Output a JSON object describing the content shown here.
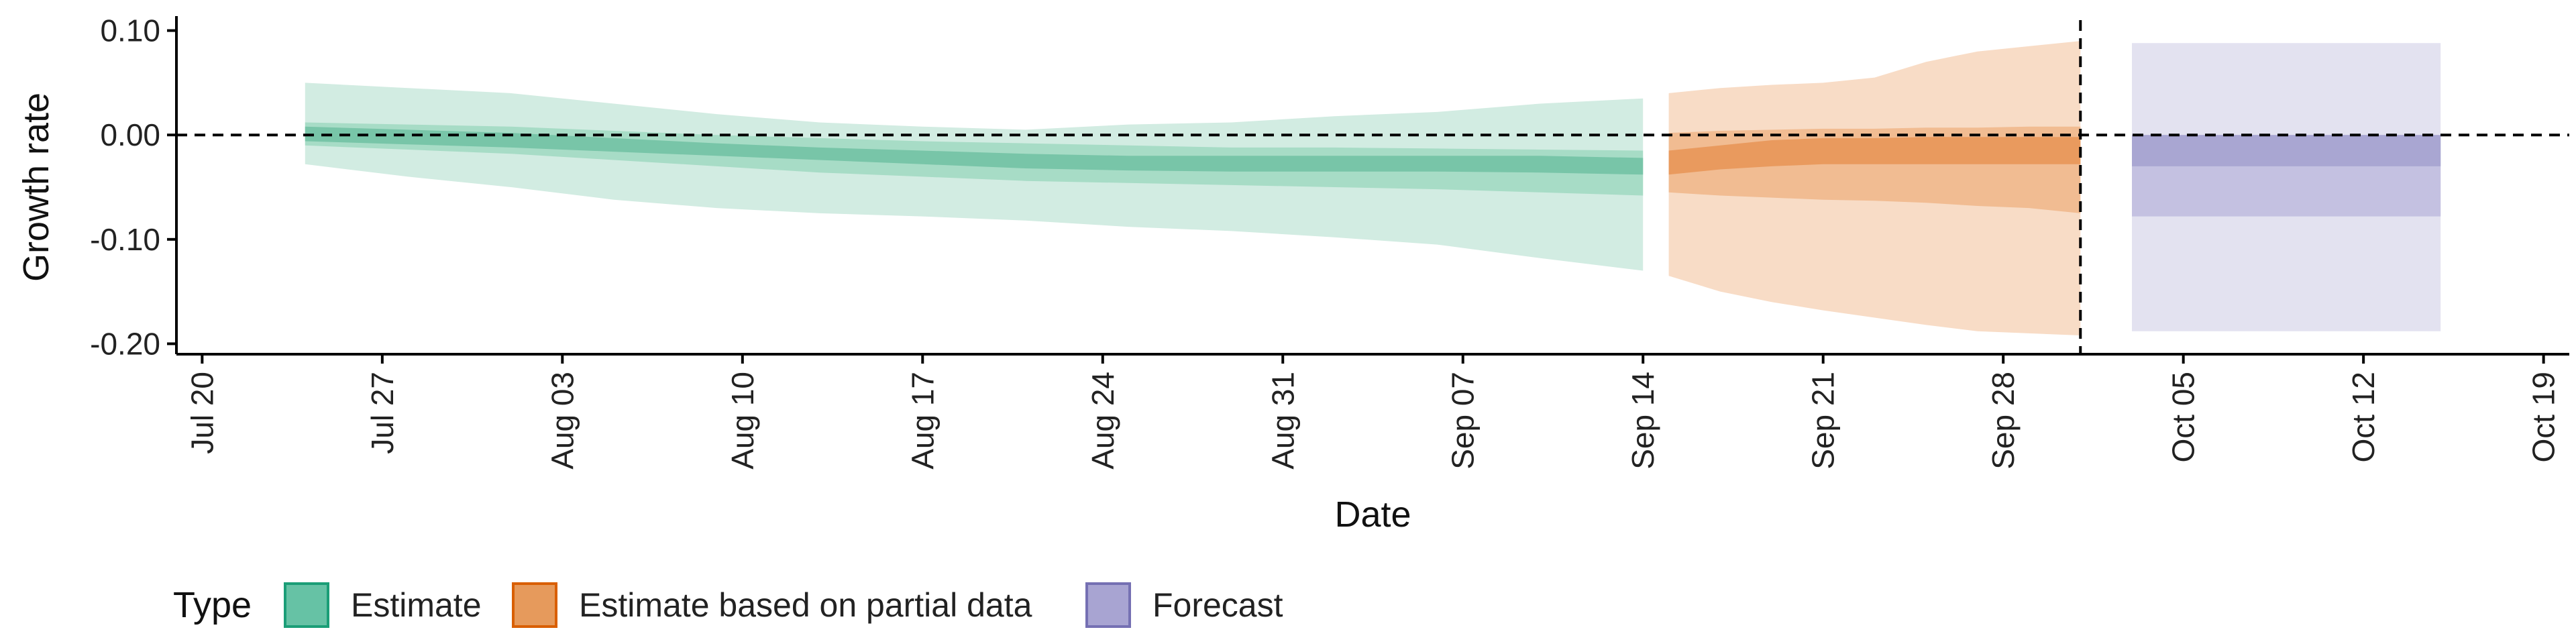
{
  "chart_data": {
    "type": "area",
    "title": "",
    "xlabel": "Date",
    "ylabel": "Growth rate",
    "xlim": [
      "2020-07-19",
      "2020-10-20"
    ],
    "ylim": [
      -0.21,
      0.11
    ],
    "x_ticks": [
      {
        "date": "2020-07-20",
        "label": "Jul 20"
      },
      {
        "date": "2020-07-27",
        "label": "Jul 27"
      },
      {
        "date": "2020-08-03",
        "label": "Aug 03"
      },
      {
        "date": "2020-08-10",
        "label": "Aug 10"
      },
      {
        "date": "2020-08-17",
        "label": "Aug 17"
      },
      {
        "date": "2020-08-24",
        "label": "Aug 24"
      },
      {
        "date": "2020-08-31",
        "label": "Aug 31"
      },
      {
        "date": "2020-09-07",
        "label": "Sep 07"
      },
      {
        "date": "2020-09-14",
        "label": "Sep 14"
      },
      {
        "date": "2020-09-21",
        "label": "Sep 21"
      },
      {
        "date": "2020-09-28",
        "label": "Sep 28"
      },
      {
        "date": "2020-10-05",
        "label": "Oct 05"
      },
      {
        "date": "2020-10-12",
        "label": "Oct 12"
      },
      {
        "date": "2020-10-19",
        "label": "Oct 19"
      }
    ],
    "y_ticks": [
      {
        "value": 0.1,
        "label": "0.10"
      },
      {
        "value": 0.0,
        "label": "0.00"
      },
      {
        "value": -0.1,
        "label": "-0.10"
      },
      {
        "value": -0.2,
        "label": "-0.20"
      }
    ],
    "reference_lines": [
      {
        "axis": "y",
        "value": 0.0,
        "style": "dashed",
        "color": "#000000"
      },
      {
        "axis": "x",
        "value": "2020-10-01",
        "style": "dashed",
        "color": "#000000"
      }
    ],
    "grid": false,
    "legend": {
      "title": "Type",
      "position": "bottom",
      "entries": [
        {
          "label": "Estimate",
          "fill": "#66c2a5",
          "stroke": "#1b9e77"
        },
        {
          "label": "Estimate based on partial data",
          "fill": "#e69a5c",
          "stroke": "#d95f02"
        },
        {
          "label": "Forecast",
          "fill": "#a8a4d2",
          "stroke": "#7570b3"
        }
      ]
    },
    "series": [
      {
        "type": "Estimate",
        "colors": {
          "outer": "#d2ece2",
          "mid": "#a7dcc6",
          "inner": "#78c5a8"
        },
        "x": [
          "2020-07-24",
          "2020-07-28",
          "2020-08-01",
          "2020-08-05",
          "2020-08-09",
          "2020-08-13",
          "2020-08-17",
          "2020-08-21",
          "2020-08-25",
          "2020-08-29",
          "2020-09-02",
          "2020-09-06",
          "2020-09-10",
          "2020-09-14"
        ],
        "outer_upper": [
          0.05,
          0.045,
          0.04,
          0.03,
          0.02,
          0.012,
          0.008,
          0.005,
          0.01,
          0.012,
          0.018,
          0.022,
          0.03,
          0.035
        ],
        "outer_lower": [
          -0.028,
          -0.04,
          -0.05,
          -0.062,
          -0.07,
          -0.075,
          -0.078,
          -0.082,
          -0.088,
          -0.092,
          -0.098,
          -0.105,
          -0.118,
          -0.13
        ],
        "mid_upper": [
          0.012,
          0.01,
          0.008,
          0.004,
          0.0,
          -0.003,
          -0.006,
          -0.008,
          -0.01,
          -0.012,
          -0.012,
          -0.013,
          -0.014,
          -0.015
        ],
        "mid_lower": [
          -0.01,
          -0.014,
          -0.018,
          -0.024,
          -0.03,
          -0.036,
          -0.04,
          -0.044,
          -0.046,
          -0.048,
          -0.05,
          -0.052,
          -0.055,
          -0.058
        ],
        "inner_upper": [
          0.008,
          0.005,
          0.002,
          -0.003,
          -0.008,
          -0.012,
          -0.015,
          -0.018,
          -0.02,
          -0.02,
          -0.02,
          -0.02,
          -0.02,
          -0.022
        ],
        "inner_lower": [
          -0.006,
          -0.009,
          -0.012,
          -0.016,
          -0.02,
          -0.024,
          -0.028,
          -0.032,
          -0.034,
          -0.035,
          -0.035,
          -0.035,
          -0.036,
          -0.038
        ]
      },
      {
        "type": "Estimate based on partial data",
        "colors": {
          "outer": "#f8dcc6",
          "mid": "#f1bc92",
          "inner": "#e99a5e"
        },
        "x": [
          "2020-09-15",
          "2020-09-17",
          "2020-09-19",
          "2020-09-21",
          "2020-09-23",
          "2020-09-25",
          "2020-09-27",
          "2020-09-29",
          "2020-10-01"
        ],
        "outer_upper": [
          0.04,
          0.045,
          0.048,
          0.05,
          0.055,
          0.07,
          0.08,
          0.085,
          0.09
        ],
        "outer_lower": [
          -0.135,
          -0.15,
          -0.16,
          -0.168,
          -0.175,
          -0.182,
          -0.188,
          -0.19,
          -0.192
        ],
        "mid_upper": [
          0.002,
          0.004,
          0.005,
          0.006,
          0.006,
          0.007,
          0.007,
          0.008,
          0.008
        ],
        "mid_lower": [
          -0.055,
          -0.058,
          -0.06,
          -0.062,
          -0.063,
          -0.065,
          -0.068,
          -0.07,
          -0.075
        ],
        "inner_upper": [
          -0.015,
          -0.01,
          -0.005,
          -0.003,
          -0.003,
          -0.002,
          -0.002,
          -0.002,
          -0.002
        ],
        "inner_lower": [
          -0.038,
          -0.033,
          -0.03,
          -0.028,
          -0.028,
          -0.028,
          -0.028,
          -0.028,
          -0.028
        ]
      },
      {
        "type": "Forecast",
        "colors": {
          "outer": "#e3e2f0",
          "mid": "#c4c1e1",
          "inner": "#a9a6d2"
        },
        "x": [
          "2020-10-03",
          "2020-10-15"
        ],
        "outer_upper": [
          0.088,
          0.088
        ],
        "outer_lower": [
          -0.188,
          -0.188
        ],
        "mid_upper": [
          0.0,
          0.0
        ],
        "mid_lower": [
          -0.078,
          -0.078
        ],
        "inner_upper": [
          0.0,
          0.0
        ],
        "inner_lower": [
          -0.03,
          -0.03
        ]
      }
    ]
  }
}
